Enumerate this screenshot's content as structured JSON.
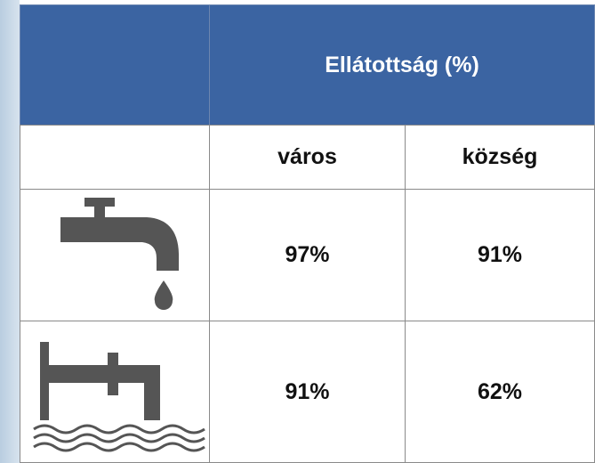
{
  "table": {
    "header": "Ellátottság (%)",
    "columns": [
      "város",
      "község"
    ],
    "rows": [
      {
        "values": [
          "97%",
          "91%"
        ]
      },
      {
        "values": [
          "91%",
          "62%"
        ]
      }
    ]
  }
}
